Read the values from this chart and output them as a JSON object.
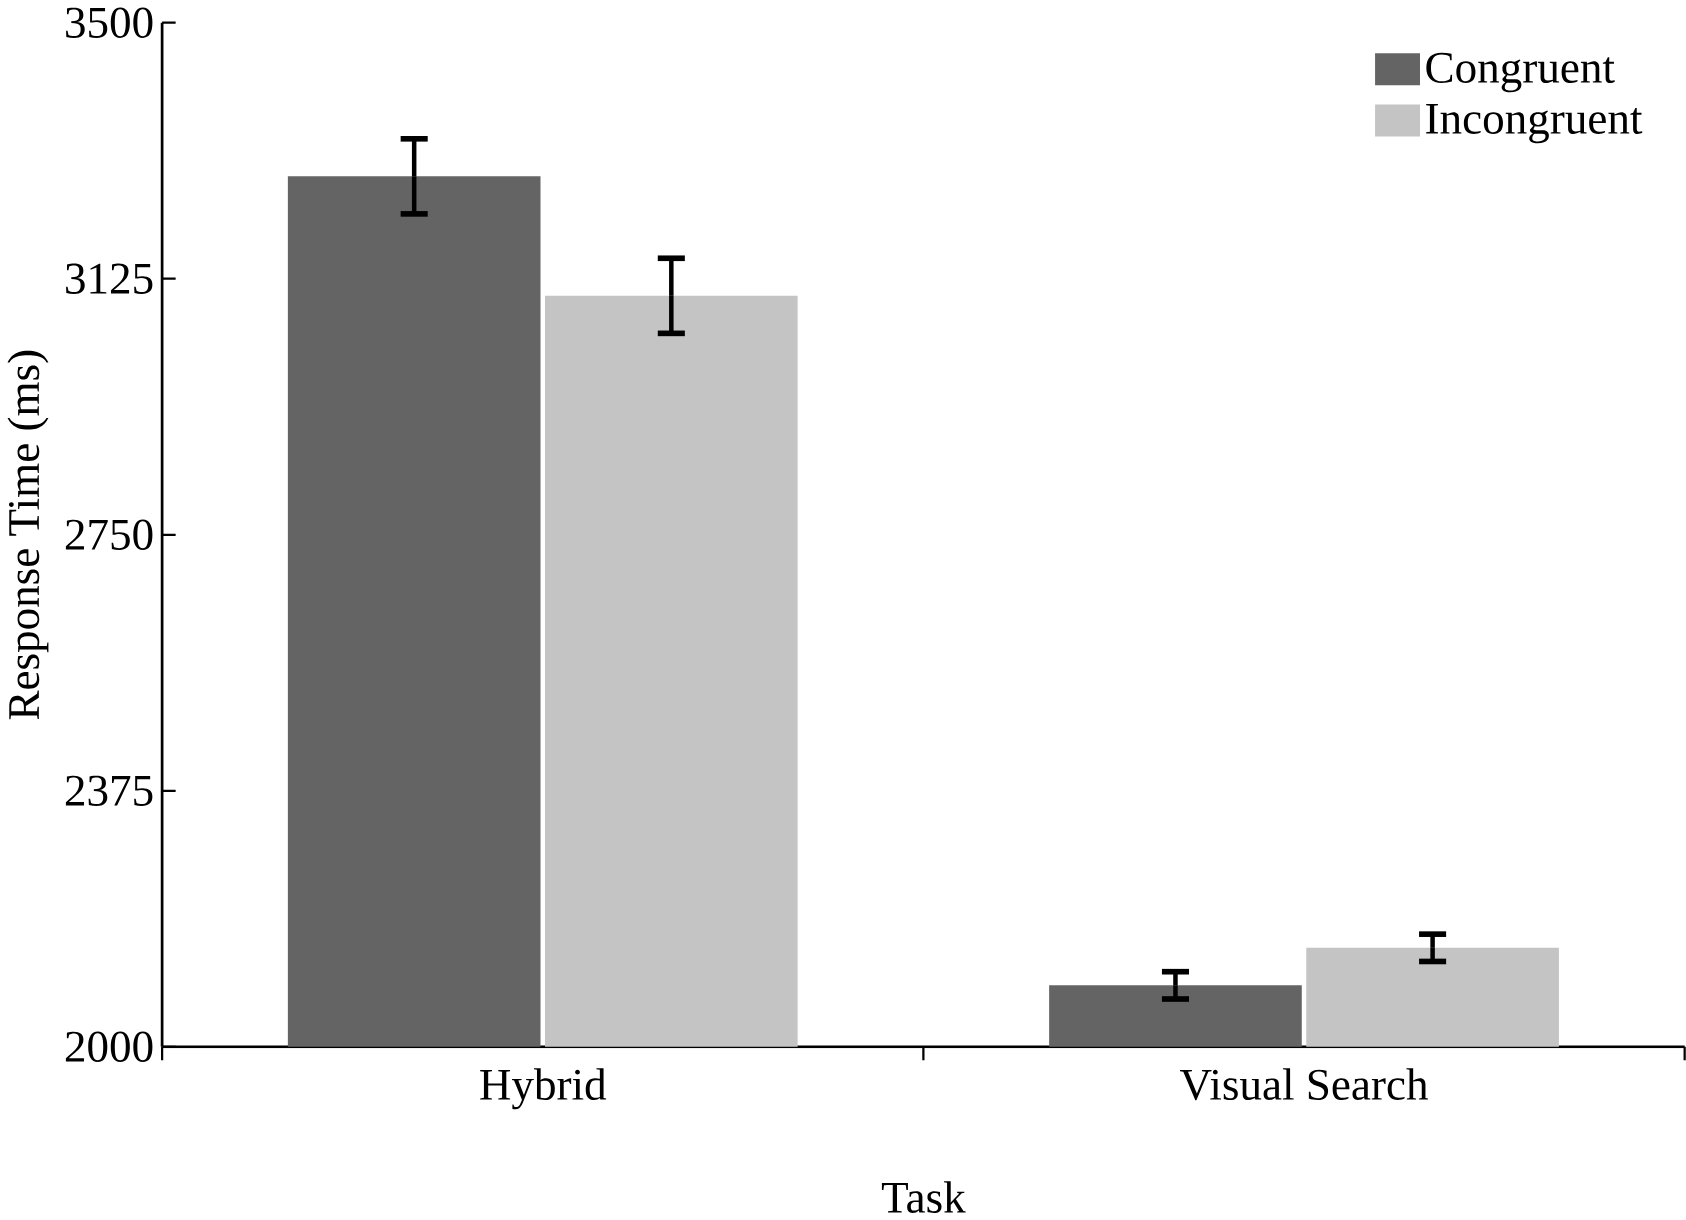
{
  "chart_data": {
    "type": "bar",
    "xlabel": "Task",
    "ylabel": "Response Time (ms)",
    "categories": [
      "Hybrid",
      "Visual Search"
    ],
    "series": [
      {
        "name": "Congruent",
        "color": "#646464",
        "values": [
          3275,
          2090
        ],
        "errors": [
          55,
          20
        ]
      },
      {
        "name": "Incongruent",
        "color": "#c4c4c4",
        "values": [
          3100,
          2145
        ],
        "errors": [
          55,
          20
        ]
      }
    ],
    "ylim": [
      2000,
      3500
    ],
    "yticks": [
      2000,
      2375,
      2750,
      3125,
      3500
    ],
    "grid": false,
    "legend": "top right"
  }
}
